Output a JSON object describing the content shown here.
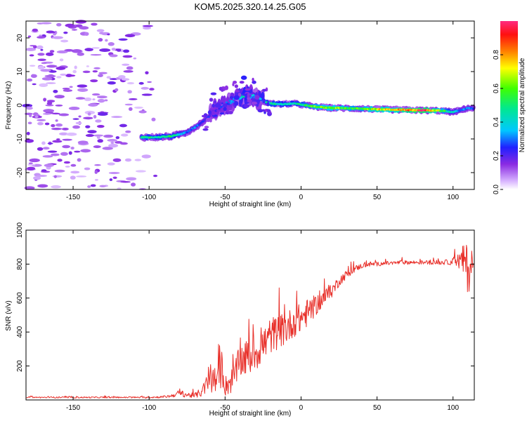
{
  "title": "KOM5.2025.320.14.25.G05",
  "chart_data": [
    {
      "type": "heatmap",
      "name": "spectrogram",
      "xlabel": "Height of straight line (km)",
      "ylabel": "Frequency (Hz)",
      "xlim": [
        -181,
        114
      ],
      "ylim": [
        -25,
        25
      ],
      "x_ticks": [
        -150,
        -100,
        -50,
        0,
        50,
        100
      ],
      "x_tick_labels": [
        "-150",
        "-100",
        "-50",
        "0",
        "50",
        "100"
      ],
      "y_ticks": [
        -20,
        -10,
        0,
        10,
        20
      ],
      "y_tick_labels": [
        "-20",
        "-10",
        "0",
        "10",
        "20"
      ],
      "ridge": {
        "x": [
          -105,
          -95,
          -85,
          -75,
          -68,
          -62,
          -57,
          -52,
          -47,
          -42,
          -37,
          -32,
          -27,
          -20,
          -12,
          -5,
          0,
          10,
          20,
          30,
          40,
          50,
          60,
          70,
          80,
          90,
          100,
          105,
          110,
          114
        ],
        "freq": [
          -9.5,
          -9.5,
          -9.2,
          -8,
          -6,
          -4,
          -1.5,
          0,
          0.8,
          2,
          3,
          2.8,
          1.5,
          0.5,
          0.3,
          0.5,
          0.2,
          -0.5,
          -0.8,
          -0.9,
          -1,
          -1.2,
          -1.3,
          -1.4,
          -1.5,
          -1.6,
          -2,
          -1.5,
          -0.8,
          -1
        ],
        "amplitude": [
          0.5,
          0.45,
          0.5,
          0.3,
          0.3,
          0.25,
          0.2,
          0.25,
          0.3,
          0.35,
          0.45,
          0.35,
          0.4,
          0.5,
          0.45,
          0.45,
          0.5,
          0.6,
          0.65,
          0.6,
          0.55,
          0.75,
          0.7,
          0.85,
          0.95,
          0.7,
          0.4,
          0.3,
          0.3,
          0.3
        ]
      },
      "colorbar": {
        "label": "Normalized spectral amplitude",
        "range": [
          0,
          1
        ],
        "ticks": [
          0,
          0.2,
          0.4,
          0.6,
          0.8
        ],
        "tick_labels": [
          "0.0",
          "0.2",
          "0.4",
          "0.6",
          "0.8"
        ]
      }
    },
    {
      "type": "line",
      "name": "snr",
      "xlabel": "Height of straight line (km)",
      "ylabel": "SNR (v/v)",
      "xlim": [
        -181,
        114
      ],
      "ylim": [
        0,
        1000
      ],
      "x_ticks": [
        -150,
        -100,
        -50,
        0,
        50,
        100
      ],
      "x_tick_labels": [
        "-150",
        "-100",
        "-50",
        "0",
        "50",
        "100"
      ],
      "y_ticks": [
        200,
        400,
        600,
        800,
        1000
      ],
      "y_tick_labels": [
        "200",
        "400",
        "600",
        "800",
        "1000"
      ],
      "series": [
        {
          "name": "SNR",
          "color": "#e8302a",
          "x": [
            -181,
            -160,
            -140,
            -120,
            -100,
            -90,
            -85,
            -80,
            -75,
            -70,
            -65,
            -60,
            -55,
            -52,
            -50,
            -45,
            -40,
            -35,
            -30,
            -25,
            -20,
            -15,
            -10,
            -5,
            0,
            5,
            10,
            15,
            20,
            25,
            30,
            35,
            40,
            45,
            50,
            55,
            60,
            65,
            70,
            75,
            80,
            85,
            90,
            95,
            100,
            105,
            108,
            110,
            112,
            114
          ],
          "y": [
            15,
            15,
            15,
            15,
            15,
            18,
            25,
            40,
            30,
            25,
            50,
            120,
            100,
            200,
            80,
            120,
            230,
            250,
            280,
            320,
            380,
            400,
            420,
            460,
            480,
            520,
            560,
            600,
            640,
            700,
            740,
            770,
            790,
            800,
            800,
            805,
            805,
            810,
            810,
            810,
            810,
            810,
            810,
            810,
            815,
            820,
            820,
            750,
            800,
            800
          ],
          "noise": [
            4,
            4,
            4,
            4,
            5,
            6,
            10,
            20,
            15,
            15,
            30,
            80,
            80,
            120,
            60,
            80,
            100,
            110,
            110,
            110,
            110,
            100,
            100,
            90,
            90,
            80,
            60,
            50,
            40,
            30,
            25,
            20,
            15,
            15,
            12,
            12,
            12,
            12,
            12,
            12,
            12,
            12,
            14,
            14,
            20,
            60,
            120,
            150,
            60,
            15
          ]
        }
      ]
    }
  ]
}
